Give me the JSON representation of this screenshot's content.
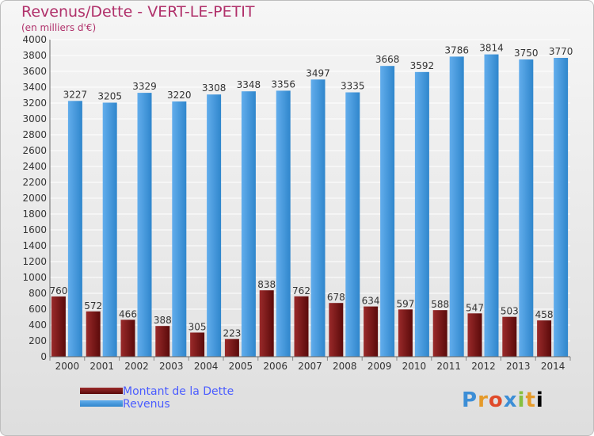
{
  "title": "Revenus/Dette - VERT-LE-PETIT",
  "subtitle": "(en milliers d'€)",
  "logo_text": "Proxiti",
  "colors": {
    "title": "#b0306a",
    "dette": "#7a1414",
    "revenus": "#3d93d6",
    "legend_text": "#4a5cff"
  },
  "chart_data": {
    "type": "bar",
    "categories": [
      "2000",
      "2001",
      "2002",
      "2003",
      "2004",
      "2005",
      "2006",
      "2007",
      "2008",
      "2009",
      "2010",
      "2011",
      "2012",
      "2013",
      "2014"
    ],
    "series": [
      {
        "name": "Montant de la Dette",
        "values": [
          760,
          572,
          466,
          388,
          305,
          223,
          838,
          762,
          678,
          634,
          597,
          588,
          547,
          503,
          458
        ]
      },
      {
        "name": "Revenus",
        "values": [
          3227,
          3205,
          3329,
          3220,
          3308,
          3348,
          3356,
          3497,
          3335,
          3668,
          3592,
          3786,
          3814,
          3750,
          3770
        ]
      }
    ],
    "ylim": [
      0,
      4000
    ],
    "yticks": [
      0,
      200,
      400,
      600,
      800,
      1000,
      1200,
      1400,
      1600,
      1800,
      2000,
      2200,
      2400,
      2600,
      2800,
      3000,
      3200,
      3400,
      3600,
      3800,
      4000
    ],
    "grid": true,
    "legend_position": "bottom-left"
  }
}
